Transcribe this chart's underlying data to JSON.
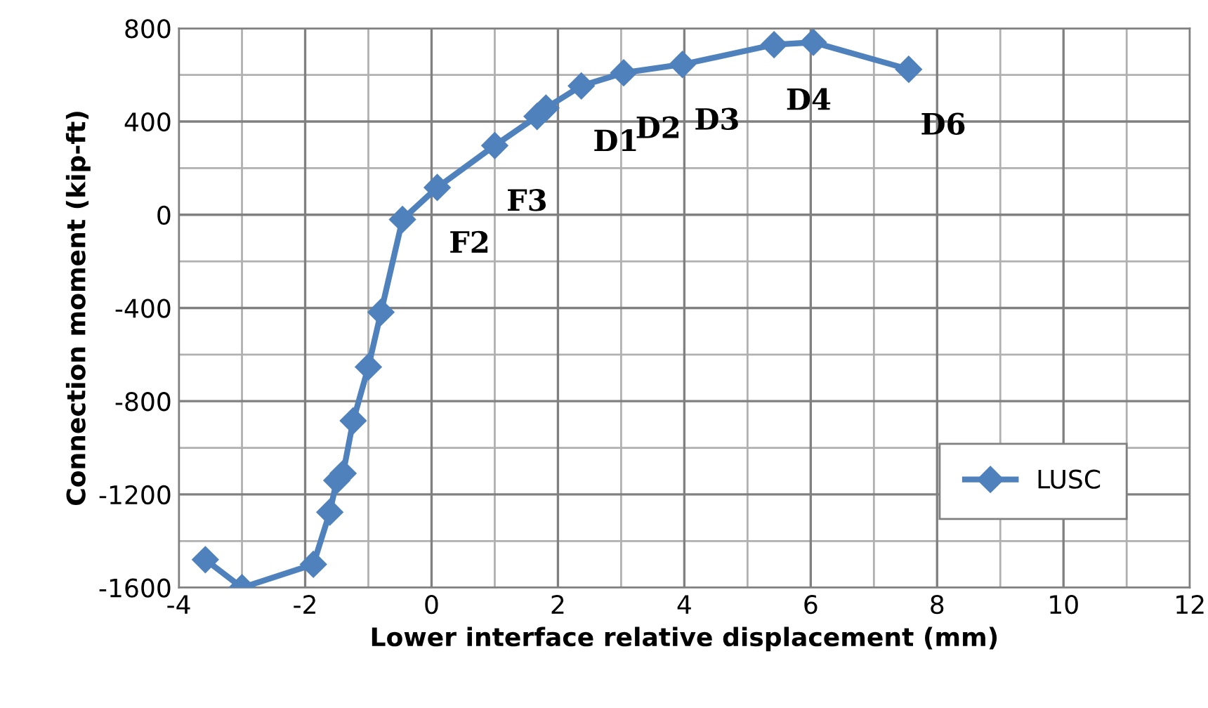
{
  "chart_data": {
    "type": "line",
    "xlabel": "Lower interface relative displacement (mm)",
    "ylabel": "Connection moment (kip-ft)",
    "series": [
      {
        "name": "LUSC",
        "color": "#4f81bd",
        "x": [
          -3.58,
          -3.0,
          -1.87,
          -1.61,
          -1.5,
          -1.4,
          -1.24,
          -1.0,
          -0.8,
          -0.46,
          0.09,
          1.0,
          1.67,
          1.81,
          2.37,
          3.04,
          3.97,
          5.42,
          6.04,
          7.55
        ],
        "values": [
          -1480,
          -1600,
          -1500,
          -1276,
          -1140,
          -1110,
          -884,
          -653,
          -418,
          -20,
          117,
          297,
          422,
          458,
          553,
          609,
          645,
          730,
          740,
          624
        ]
      }
    ],
    "xlim": [
      -4,
      12
    ],
    "xticks": [
      -4,
      -2,
      0,
      2,
      4,
      6,
      8,
      10,
      12
    ],
    "ylim": [
      -1600,
      800
    ],
    "yticks": [
      -1600,
      -1200,
      -800,
      -400,
      0,
      400,
      800
    ],
    "grid": true,
    "marker": "diamond",
    "line_style": "solid",
    "legend": "bottom right",
    "annotations": [
      {
        "text": "F2",
        "x": 0.09,
        "y": 117
      },
      {
        "text": "F3",
        "x": 1.0,
        "y": 297
      },
      {
        "text": "D1",
        "x": 2.37,
        "y": 553
      },
      {
        "text": "D2",
        "x": 3.04,
        "y": 609
      },
      {
        "text": "D3",
        "x": 3.97,
        "y": 645
      },
      {
        "text": "D4",
        "x": 5.42,
        "y": 730
      },
      {
        "text": "D6",
        "x": 7.55,
        "y": 624
      }
    ]
  }
}
